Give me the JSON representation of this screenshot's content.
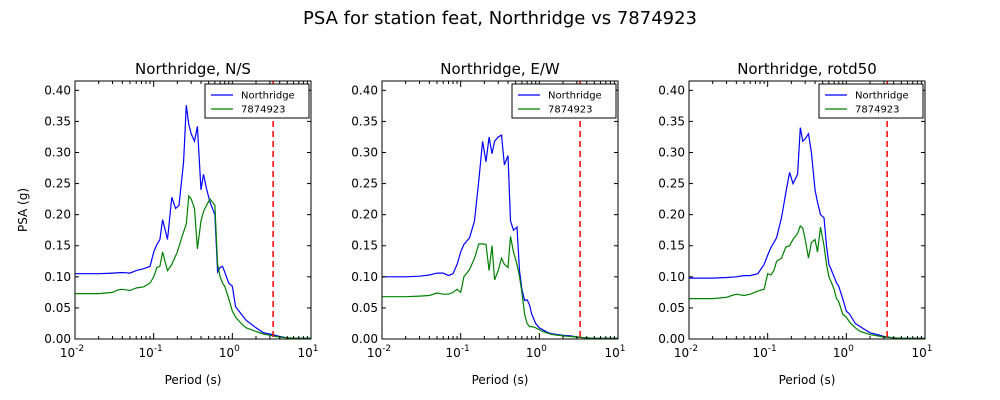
{
  "figure_title": "PSA for station feat, Northridge vs 7874923",
  "chart_data": [
    {
      "type": "line",
      "title": "Northridge, N/S",
      "xlabel": "Period (s)",
      "ylabel": "PSA (g)",
      "xscale": "log",
      "xlim": [
        0.01,
        10
      ],
      "ylim": [
        0,
        0.415
      ],
      "yticks": [
        "0.00",
        "0.05",
        "0.10",
        "0.15",
        "0.20",
        "0.25",
        "0.30",
        "0.35",
        "0.40"
      ],
      "xticks": [
        "10",
        "10",
        "10",
        "10"
      ],
      "xtick_exponents": [
        "-2",
        "-1",
        "0",
        "1"
      ],
      "legend_position": "top-right",
      "vline": {
        "x": 3.3,
        "color": "#ff0000",
        "style": "dashed"
      },
      "series": [
        {
          "name": "Northridge",
          "color": "#0000ff",
          "x": [
            0.01,
            0.02,
            0.03,
            0.04,
            0.05,
            0.06,
            0.075,
            0.09,
            0.1,
            0.11,
            0.12,
            0.13,
            0.15,
            0.17,
            0.19,
            0.21,
            0.24,
            0.26,
            0.28,
            0.3,
            0.33,
            0.36,
            0.4,
            0.43,
            0.47,
            0.52,
            0.6,
            0.65,
            0.7,
            0.75,
            0.8,
            0.9,
            1.0,
            1.1,
            1.3,
            1.5,
            2.0,
            2.5,
            3.0,
            4.0,
            5.0,
            7.0,
            10.0
          ],
          "y": [
            0.105,
            0.105,
            0.106,
            0.107,
            0.106,
            0.11,
            0.113,
            0.117,
            0.14,
            0.152,
            0.16,
            0.192,
            0.16,
            0.228,
            0.21,
            0.215,
            0.285,
            0.376,
            0.345,
            0.33,
            0.318,
            0.342,
            0.24,
            0.265,
            0.242,
            0.22,
            0.2,
            0.108,
            0.115,
            0.117,
            0.108,
            0.09,
            0.085,
            0.052,
            0.04,
            0.03,
            0.018,
            0.01,
            0.008,
            0.004,
            0.002,
            0.001,
            0.001
          ]
        },
        {
          "name": "7874923",
          "color": "#008000",
          "x": [
            0.01,
            0.02,
            0.03,
            0.035,
            0.04,
            0.05,
            0.06,
            0.075,
            0.09,
            0.1,
            0.11,
            0.12,
            0.13,
            0.15,
            0.17,
            0.2,
            0.23,
            0.26,
            0.28,
            0.3,
            0.33,
            0.36,
            0.4,
            0.43,
            0.47,
            0.52,
            0.6,
            0.65,
            0.7,
            0.75,
            0.8,
            0.9,
            1.0,
            1.1,
            1.3,
            1.5,
            2.0,
            2.5,
            3.0,
            4.0,
            5.0,
            7.0,
            10.0
          ],
          "y": [
            0.073,
            0.073,
            0.075,
            0.079,
            0.08,
            0.078,
            0.082,
            0.084,
            0.09,
            0.1,
            0.115,
            0.117,
            0.14,
            0.11,
            0.12,
            0.14,
            0.165,
            0.185,
            0.23,
            0.225,
            0.21,
            0.145,
            0.19,
            0.205,
            0.215,
            0.225,
            0.215,
            0.12,
            0.1,
            0.09,
            0.085,
            0.065,
            0.045,
            0.035,
            0.025,
            0.018,
            0.012,
            0.008,
            0.006,
            0.003,
            0.002,
            0.001,
            0.001
          ]
        }
      ]
    },
    {
      "type": "line",
      "title": "Northridge, E/W",
      "xlabel": "Period (s)",
      "ylabel": "",
      "xscale": "log",
      "xlim": [
        0.01,
        10
      ],
      "ylim": [
        0,
        0.415
      ],
      "yticks": [
        "0.00",
        "0.05",
        "0.10",
        "0.15",
        "0.20",
        "0.25",
        "0.30",
        "0.35",
        "0.40"
      ],
      "xticks": [
        "10",
        "10",
        "10",
        "10"
      ],
      "xtick_exponents": [
        "-2",
        "-1",
        "0",
        "1"
      ],
      "legend_position": "top-right",
      "vline": {
        "x": 3.3,
        "color": "#ff0000",
        "style": "dashed"
      },
      "series": [
        {
          "name": "Northridge",
          "color": "#0000ff",
          "x": [
            0.01,
            0.02,
            0.03,
            0.04,
            0.05,
            0.06,
            0.07,
            0.08,
            0.09,
            0.1,
            0.11,
            0.13,
            0.15,
            0.17,
            0.19,
            0.21,
            0.23,
            0.25,
            0.27,
            0.3,
            0.33,
            0.36,
            0.4,
            0.43,
            0.47,
            0.52,
            0.56,
            0.6,
            0.65,
            0.7,
            0.75,
            0.8,
            0.9,
            1.0,
            1.1,
            1.3,
            1.5,
            2.0,
            2.5,
            3.0,
            4.0,
            5.0,
            7.0,
            10.0
          ],
          "y": [
            0.1,
            0.1,
            0.101,
            0.103,
            0.106,
            0.106,
            0.102,
            0.105,
            0.12,
            0.14,
            0.152,
            0.163,
            0.19,
            0.255,
            0.318,
            0.285,
            0.325,
            0.298,
            0.318,
            0.325,
            0.328,
            0.28,
            0.295,
            0.19,
            0.175,
            0.18,
            0.11,
            0.08,
            0.062,
            0.063,
            0.055,
            0.04,
            0.025,
            0.018,
            0.015,
            0.01,
            0.008,
            0.006,
            0.005,
            0.003,
            0.002,
            0.001,
            0.001,
            0.001
          ]
        },
        {
          "name": "7874923",
          "color": "#008000",
          "x": [
            0.01,
            0.02,
            0.03,
            0.04,
            0.05,
            0.06,
            0.07,
            0.08,
            0.09,
            0.1,
            0.11,
            0.13,
            0.15,
            0.17,
            0.19,
            0.21,
            0.23,
            0.25,
            0.27,
            0.3,
            0.33,
            0.36,
            0.4,
            0.43,
            0.47,
            0.52,
            0.56,
            0.6,
            0.65,
            0.7,
            0.75,
            0.8,
            0.9,
            1.0,
            1.1,
            1.3,
            1.5,
            2.0,
            2.5,
            3.0,
            4.0,
            5.0,
            7.0,
            10.0
          ],
          "y": [
            0.068,
            0.068,
            0.069,
            0.07,
            0.074,
            0.072,
            0.072,
            0.075,
            0.08,
            0.075,
            0.1,
            0.112,
            0.13,
            0.153,
            0.153,
            0.152,
            0.11,
            0.15,
            0.095,
            0.11,
            0.13,
            0.12,
            0.115,
            0.165,
            0.14,
            0.12,
            0.1,
            0.075,
            0.04,
            0.025,
            0.02,
            0.02,
            0.018,
            0.015,
            0.012,
            0.009,
            0.007,
            0.005,
            0.004,
            0.003,
            0.002,
            0.001,
            0.001,
            0.001
          ]
        }
      ]
    },
    {
      "type": "line",
      "title": "Northridge, rotd50",
      "xlabel": "Period (s)",
      "ylabel": "",
      "xscale": "log",
      "xlim": [
        0.01,
        10
      ],
      "ylim": [
        0,
        0.415
      ],
      "yticks": [
        "0.00",
        "0.05",
        "0.10",
        "0.15",
        "0.20",
        "0.25",
        "0.30",
        "0.35",
        "0.40"
      ],
      "xticks": [
        "10",
        "10",
        "10",
        "10"
      ],
      "xtick_exponents": [
        "-2",
        "-1",
        "0",
        "1"
      ],
      "legend_position": "top-right",
      "vline": {
        "x": 3.3,
        "color": "#ff0000",
        "style": "dashed"
      },
      "series": [
        {
          "name": "Northridge",
          "color": "#0000ff",
          "x": [
            0.01,
            0.02,
            0.03,
            0.04,
            0.05,
            0.06,
            0.075,
            0.09,
            0.1,
            0.11,
            0.12,
            0.13,
            0.15,
            0.17,
            0.19,
            0.21,
            0.24,
            0.26,
            0.28,
            0.3,
            0.33,
            0.36,
            0.4,
            0.43,
            0.47,
            0.52,
            0.56,
            0.6,
            0.65,
            0.7,
            0.75,
            0.8,
            0.9,
            1.0,
            1.1,
            1.3,
            1.5,
            2.0,
            2.5,
            3.0,
            4.0,
            5.0,
            7.0,
            10.0
          ],
          "y": [
            0.098,
            0.098,
            0.099,
            0.1,
            0.102,
            0.102,
            0.105,
            0.12,
            0.135,
            0.147,
            0.155,
            0.163,
            0.195,
            0.235,
            0.268,
            0.25,
            0.265,
            0.34,
            0.318,
            0.322,
            0.33,
            0.3,
            0.24,
            0.22,
            0.2,
            0.195,
            0.15,
            0.12,
            0.11,
            0.1,
            0.09,
            0.085,
            0.065,
            0.045,
            0.04,
            0.025,
            0.02,
            0.01,
            0.007,
            0.004,
            0.002,
            0.001,
            0.001,
            0.001
          ]
        },
        {
          "name": "7874923",
          "color": "#008000",
          "x": [
            0.01,
            0.02,
            0.03,
            0.035,
            0.04,
            0.05,
            0.06,
            0.075,
            0.09,
            0.1,
            0.11,
            0.12,
            0.13,
            0.15,
            0.17,
            0.19,
            0.21,
            0.24,
            0.26,
            0.28,
            0.3,
            0.33,
            0.36,
            0.4,
            0.43,
            0.47,
            0.52,
            0.56,
            0.6,
            0.65,
            0.7,
            0.75,
            0.8,
            0.9,
            1.0,
            1.1,
            1.3,
            1.5,
            2.0,
            2.5,
            3.0,
            4.0,
            5.0,
            7.0,
            10.0
          ],
          "y": [
            0.065,
            0.065,
            0.067,
            0.07,
            0.072,
            0.07,
            0.072,
            0.077,
            0.08,
            0.105,
            0.103,
            0.11,
            0.125,
            0.13,
            0.148,
            0.15,
            0.16,
            0.17,
            0.182,
            0.178,
            0.16,
            0.13,
            0.155,
            0.16,
            0.14,
            0.18,
            0.15,
            0.12,
            0.1,
            0.09,
            0.08,
            0.065,
            0.06,
            0.04,
            0.035,
            0.027,
            0.018,
            0.012,
            0.007,
            0.005,
            0.003,
            0.002,
            0.001,
            0.001,
            0.001
          ]
        }
      ]
    }
  ]
}
